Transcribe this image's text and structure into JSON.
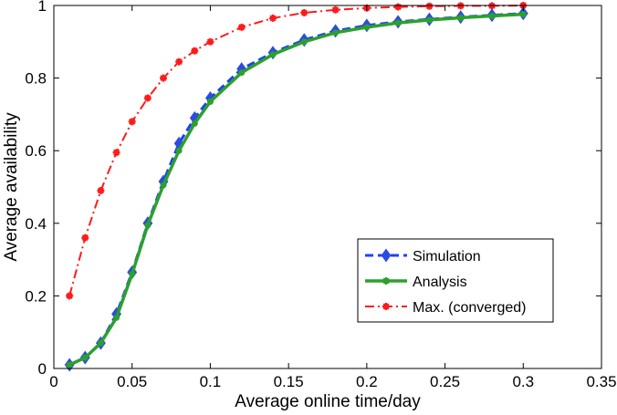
{
  "chart_data": {
    "type": "line",
    "title": "",
    "xlabel": "Average online time/day",
    "ylabel": "Average availability",
    "xlim": [
      0,
      0.35
    ],
    "ylim": [
      0,
      1
    ],
    "grid": false,
    "legend_position": "right",
    "x_ticks": [
      0,
      0.05,
      0.1,
      0.15,
      0.2,
      0.25,
      0.3,
      0.35
    ],
    "x_tick_labels": [
      "0",
      "0.05",
      "0.1",
      "0.15",
      "0.2",
      "0.25",
      "0.3",
      "0.35"
    ],
    "y_ticks": [
      0,
      0.2,
      0.4,
      0.6,
      0.8,
      1
    ],
    "y_tick_labels": [
      "0",
      "0.2",
      "0.4",
      "0.6",
      "0.8",
      "1"
    ],
    "series": [
      {
        "name": "Simulation",
        "color": "#1f3fff",
        "marker_color": "#2b4ce0",
        "style": "dashed",
        "marker": "diamond",
        "x": [
          0.01,
          0.02,
          0.03,
          0.04,
          0.05,
          0.06,
          0.07,
          0.08,
          0.09,
          0.1,
          0.12,
          0.14,
          0.16,
          0.18,
          0.2,
          0.22,
          0.24,
          0.26,
          0.28,
          0.3
        ],
        "y": [
          0.01,
          0.03,
          0.07,
          0.15,
          0.265,
          0.4,
          0.515,
          0.62,
          0.69,
          0.745,
          0.825,
          0.87,
          0.905,
          0.93,
          0.945,
          0.955,
          0.962,
          0.968,
          0.973,
          0.978
        ]
      },
      {
        "name": "Analysis",
        "color": "#2ca02c",
        "marker_color": "#2ca02c",
        "style": "solid",
        "marker": "star",
        "x": [
          0.01,
          0.02,
          0.03,
          0.04,
          0.05,
          0.06,
          0.07,
          0.08,
          0.09,
          0.1,
          0.12,
          0.14,
          0.16,
          0.18,
          0.2,
          0.22,
          0.24,
          0.26,
          0.28,
          0.3
        ],
        "y": [
          0.01,
          0.03,
          0.07,
          0.14,
          0.26,
          0.395,
          0.505,
          0.6,
          0.675,
          0.735,
          0.815,
          0.865,
          0.9,
          0.925,
          0.94,
          0.952,
          0.96,
          0.966,
          0.971,
          0.976
        ]
      },
      {
        "name": "Max. (converged)",
        "color": "#ff1a1a",
        "marker_color": "#ff1a1a",
        "style": "dashdot",
        "marker": "star",
        "x": [
          0.01,
          0.02,
          0.03,
          0.04,
          0.05,
          0.06,
          0.07,
          0.08,
          0.09,
          0.1,
          0.12,
          0.14,
          0.16,
          0.18,
          0.2,
          0.22,
          0.24,
          0.26,
          0.28,
          0.3
        ],
        "y": [
          0.2,
          0.36,
          0.49,
          0.595,
          0.68,
          0.745,
          0.8,
          0.845,
          0.875,
          0.9,
          0.94,
          0.965,
          0.98,
          0.988,
          0.993,
          0.996,
          0.998,
          0.999,
          0.999,
          1.0
        ]
      }
    ]
  }
}
